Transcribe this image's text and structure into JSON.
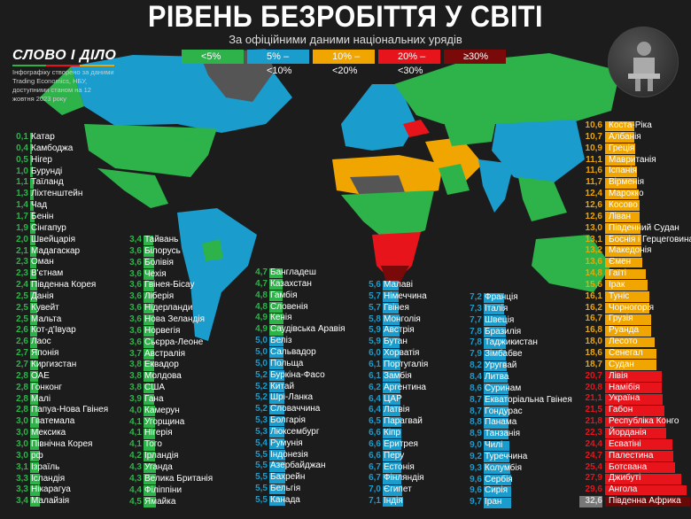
{
  "header": {
    "title": "РІВЕНЬ БЕЗРОБІТТЯ У СВІТІ",
    "subtitle": "За офіційними даними національних урядів"
  },
  "logo": {
    "text": "СЛОВО І ДІЛО",
    "note": "Інфографіку створено за даними Trading Economics, НБУ, доступними станом на 12 жовтня 2023 року"
  },
  "legend": [
    {
      "label": "<5%",
      "color": "#2db34a"
    },
    {
      "label": "5% – <10%",
      "color": "#1a9ccc"
    },
    {
      "label": "10% – <20%",
      "color": "#f0a500"
    },
    {
      "label": "20% – <30%",
      "color": "#e8141c"
    },
    {
      "label": "≥30%",
      "color": "#7a0a0a"
    }
  ],
  "avatar_icon": "person-sitting-icon",
  "columns": [
    [
      [
        "0,1",
        "Катар"
      ],
      [
        "0,4",
        "Камбоджа"
      ],
      [
        "0,5",
        "Нігер"
      ],
      [
        "1,0",
        "Бурунді"
      ],
      [
        "1,1",
        "Таїланд"
      ],
      [
        "1,3",
        "Ліхтенштейн"
      ],
      [
        "1,4",
        "Чад"
      ],
      [
        "1,7",
        "Бенін"
      ],
      [
        "1,9",
        "Сінгапур"
      ],
      [
        "2,0",
        "Швейцарія"
      ],
      [
        "2,1",
        "Мадагаскар"
      ],
      [
        "2,3",
        "Оман"
      ],
      [
        "2,3",
        "В'єтнам"
      ],
      [
        "2,4",
        "Південна Корея"
      ],
      [
        "2,5",
        "Данія"
      ],
      [
        "2,5",
        "Кувейт"
      ],
      [
        "2,5",
        "Мальта"
      ],
      [
        "2,6",
        "Кот-д'Івуар"
      ],
      [
        "2,6",
        "Лаос"
      ],
      [
        "2,7",
        "Японія"
      ],
      [
        "2,7",
        "Киргизстан"
      ],
      [
        "2,8",
        "ОАЕ"
      ],
      [
        "2,8",
        "Гонконг"
      ],
      [
        "2,8",
        "Малі"
      ],
      [
        "2,8",
        "Папуа-Нова Гвінея"
      ],
      [
        "3,0",
        "Гватемала"
      ],
      [
        "3,0",
        "Мексика"
      ],
      [
        "3,0",
        "Північна Корея"
      ],
      [
        "3,0",
        "рф"
      ],
      [
        "3,1",
        "Ізраїль"
      ],
      [
        "3,3",
        "Ісландія"
      ],
      [
        "3,3",
        "Нікарагуа"
      ],
      [
        "3,4",
        "Малайзія"
      ]
    ],
    [
      [
        "3,4",
        "Тайвань"
      ],
      [
        "3,6",
        "Білорусь"
      ],
      [
        "3,6",
        "Болівія"
      ],
      [
        "3,6",
        "Чехія"
      ],
      [
        "3,6",
        "Гвінея-Бісау"
      ],
      [
        "3,6",
        "Ліберія"
      ],
      [
        "3,6",
        "Нідерланди"
      ],
      [
        "3,6",
        "Нова Зеландія"
      ],
      [
        "3,6",
        "Норвегія"
      ],
      [
        "3,6",
        "Сьєрра-Леоне"
      ],
      [
        "3,7",
        "Австралія"
      ],
      [
        "3,8",
        "Еквадор"
      ],
      [
        "3,8",
        "Молдова"
      ],
      [
        "3,8",
        "США"
      ],
      [
        "3,9",
        "Гана"
      ],
      [
        "4,0",
        "Камерун"
      ],
      [
        "4,1",
        "Угорщина"
      ],
      [
        "4,1",
        "Нігерія"
      ],
      [
        "4,1",
        "Того"
      ],
      [
        "4,2",
        "Ірландія"
      ],
      [
        "4,3",
        "Уганда"
      ],
      [
        "4,3",
        "Велика Британія"
      ],
      [
        "4,4",
        "Філіппіни"
      ],
      [
        "4,5",
        "Ямайка"
      ]
    ],
    [
      [
        "4,7",
        "Бангладеш"
      ],
      [
        "4,7",
        "Казахстан"
      ],
      [
        "4,8",
        "Гамбія"
      ],
      [
        "4,8",
        "Словенія"
      ],
      [
        "4,9",
        "Кенія"
      ],
      [
        "4,9",
        "Саудівська Аравія"
      ],
      [
        "5,0",
        "Беліз"
      ],
      [
        "5,0",
        "Сальвадор"
      ],
      [
        "5,0",
        "Польща"
      ],
      [
        "5,2",
        "Буркіна-Фасо"
      ],
      [
        "5,2",
        "Китай"
      ],
      [
        "5,2",
        "Шрі-Ланка"
      ],
      [
        "5,2",
        "Словаччина"
      ],
      [
        "5,3",
        "Болгарія"
      ],
      [
        "5,3",
        "Люксембург"
      ],
      [
        "5,4",
        "Румунія"
      ],
      [
        "5,5",
        "Індонезія"
      ],
      [
        "5,5",
        "Азербайджан"
      ],
      [
        "5,5",
        "Бахрейн"
      ],
      [
        "5,5",
        "Бельгія"
      ],
      [
        "5,5",
        "Канада"
      ]
    ],
    [
      [
        "5,6",
        "Малаві"
      ],
      [
        "5,7",
        "Німеччина"
      ],
      [
        "5,7",
        "Гвінея"
      ],
      [
        "5,8",
        "Монголія"
      ],
      [
        "5,9",
        "Австрія"
      ],
      [
        "5,9",
        "Бутан"
      ],
      [
        "6,0",
        "Хорватія"
      ],
      [
        "6,1",
        "Португалія"
      ],
      [
        "6,1",
        "Замбія"
      ],
      [
        "6,2",
        "Аргентина"
      ],
      [
        "6,4",
        "ЦАР"
      ],
      [
        "6,4",
        "Латвія"
      ],
      [
        "6,5",
        "Парагвай"
      ],
      [
        "6,6",
        "Кіпр"
      ],
      [
        "6,6",
        "Еритрея"
      ],
      [
        "6,6",
        "Перу"
      ],
      [
        "6,7",
        "Естонія"
      ],
      [
        "6,7",
        "Фінляндія"
      ],
      [
        "7,0",
        "Єгипет"
      ],
      [
        "7,1",
        "Індія"
      ]
    ],
    [
      [
        "7,2",
        "Франція"
      ],
      [
        "7,3",
        "Італія"
      ],
      [
        "7,7",
        "Швеція"
      ],
      [
        "7,8",
        "Бразилія"
      ],
      [
        "7,8",
        "Таджикистан"
      ],
      [
        "7,9",
        "Зімбабве"
      ],
      [
        "8,2",
        "Уругвай"
      ],
      [
        "8,4",
        "Литва"
      ],
      [
        "8,6",
        "Суринам"
      ],
      [
        "8,7",
        "Екваторіальна Гвінея"
      ],
      [
        "8,7",
        "Гондурас"
      ],
      [
        "8,8",
        "Панама"
      ],
      [
        "8,9",
        "Танзанія"
      ],
      [
        "9,0",
        "Чилі"
      ],
      [
        "9,2",
        "Туреччина"
      ],
      [
        "9,3",
        "Колумбія"
      ],
      [
        "9,6",
        "Сербія"
      ],
      [
        "9,6",
        "Сирія"
      ],
      [
        "9,7",
        "Іран"
      ]
    ],
    [
      [
        "10,6",
        "Коста-Ріка"
      ],
      [
        "10,7",
        "Албанія"
      ],
      [
        "10,9",
        "Греція"
      ],
      [
        "11,1",
        "Мавританія"
      ],
      [
        "11,6",
        "Іспанія"
      ],
      [
        "11,7",
        "Вірменія"
      ],
      [
        "12,4",
        "Марокко"
      ],
      [
        "12,6",
        "Косово"
      ],
      [
        "12,6",
        "Ліван"
      ],
      [
        "13,0",
        "Південний Судан"
      ],
      [
        "13,1",
        "Боснія і Герцеговина"
      ],
      [
        "13,2",
        "Македонія"
      ],
      [
        "13,6",
        "Ємен"
      ],
      [
        "14,8",
        "Гаїті"
      ],
      [
        "15,6",
        "Ірак"
      ],
      [
        "16,1",
        "Туніс"
      ],
      [
        "16,2",
        "Чорногорія"
      ],
      [
        "16,7",
        "Грузія"
      ],
      [
        "16,8",
        "Руанда"
      ],
      [
        "18,0",
        "Лесото"
      ],
      [
        "18,6",
        "Сенегал"
      ],
      [
        "18,7",
        "Судан"
      ],
      [
        "20,7",
        "Лівія"
      ],
      [
        "20,8",
        "Намібія"
      ],
      [
        "21,1",
        "Україна"
      ],
      [
        "21,5",
        "Габон"
      ],
      [
        "21,8",
        "Республіка Конго"
      ],
      [
        "22,3",
        "Йорданія"
      ],
      [
        "24,4",
        "Есватіні"
      ],
      [
        "24,7",
        "Палестина"
      ],
      [
        "25,4",
        "Ботсвана"
      ],
      [
        "27,9",
        "Джибуті"
      ],
      [
        "29,6",
        "Ангола"
      ],
      [
        "32,6",
        "Південна Африка"
      ]
    ]
  ]
}
